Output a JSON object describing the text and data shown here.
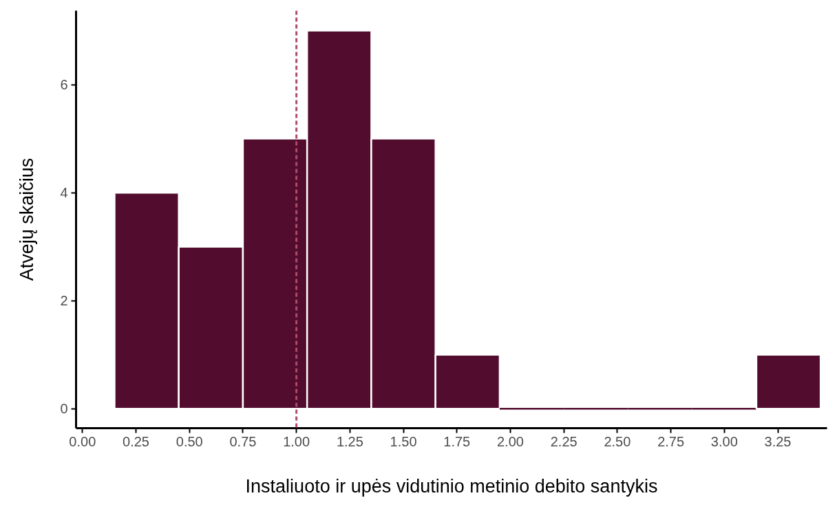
{
  "chart_data": {
    "type": "histogram",
    "xlabel": "Instaliuoto ir upės vidutinio metinio debito santykis",
    "ylabel": "Atvejų skaičius",
    "bins": [
      0.15,
      0.45,
      0.75,
      1.05,
      1.35,
      1.65,
      1.95,
      2.25,
      2.55,
      2.85,
      3.15,
      3.45
    ],
    "values": [
      4,
      3,
      5,
      7,
      5,
      1,
      0,
      0,
      0,
      0,
      1
    ],
    "color": "#520c2e",
    "xlim": [
      -0.03,
      3.48
    ],
    "ylim": [
      -0.36,
      7.37
    ],
    "xticks": [
      {
        "value": 0,
        "label": "0.00"
      },
      0.25,
      {
        "value": 0.5,
        "label": "0.50"
      },
      0.75,
      {
        "value": 1,
        "label": "1.00"
      },
      1.25,
      {
        "value": 1.5,
        "label": "1.50"
      },
      1.75,
      {
        "value": 2,
        "label": "2.00"
      },
      2.25,
      {
        "value": 2.5,
        "label": "2.50"
      },
      2.75,
      {
        "value": 3,
        "label": "3.00"
      },
      3.25
    ],
    "yticks": [
      0,
      2,
      4,
      6
    ],
    "ref_lines": [
      {
        "axis": "x",
        "value": 1.0,
        "label": null,
        "color": "#b04a6a",
        "line_style": "dashed"
      }
    ],
    "grid": false
  }
}
